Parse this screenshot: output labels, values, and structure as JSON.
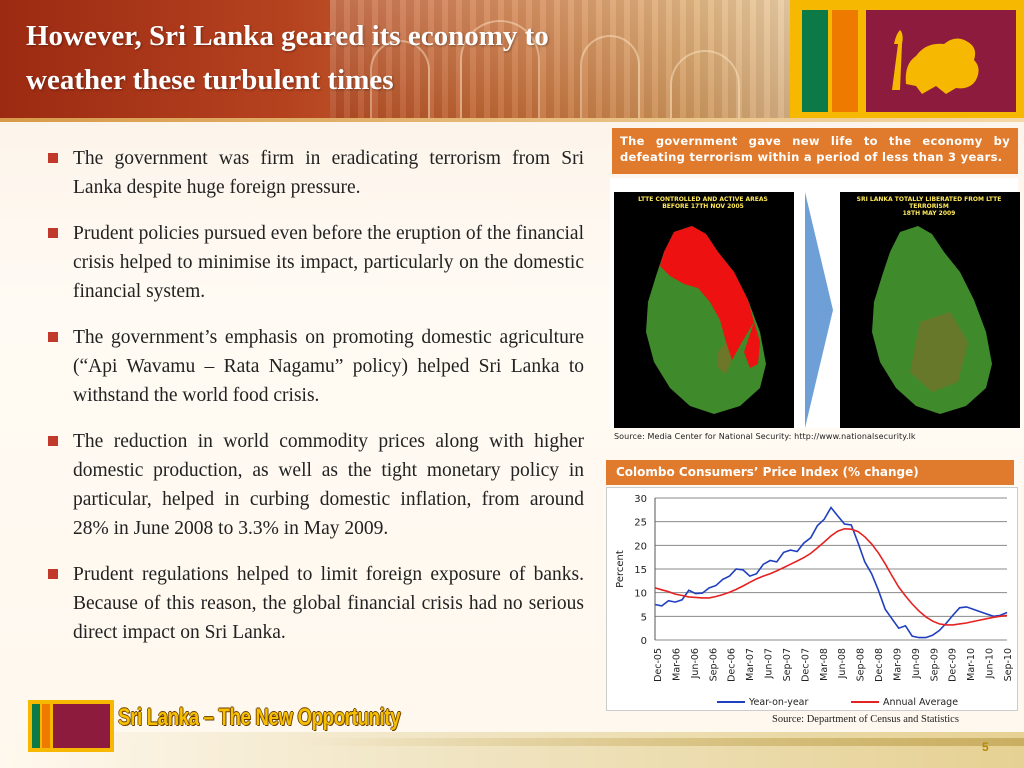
{
  "slide": {
    "title_line1": "However, Sri Lanka geared its economy to",
    "title_line2": "weather these turbulent times",
    "page_number": "5",
    "tagline": "Sri Lanka – The New Opportunity"
  },
  "bullets": [
    "The government was firm in eradicating terrorism from Sri Lanka despite huge foreign pressure.",
    "Prudent policies pursued even before the eruption of the financial crisis helped to minimise its impact, particularly on the domestic financial system.",
    "The government’s emphasis on promoting domestic agriculture (“Api Wavamu – Rata Nagamu” policy) helped Sri Lanka to withstand the world food crisis.",
    "The reduction in world commodity prices along with higher domestic production, as well as the tight monetary policy in particular, helped in curbing domestic inflation, from around 28% in June 2008 to 3.3% in May 2009.",
    "Prudent regulations helped to limit foreign exposure of banks. Because of this reason, the global financial crisis had no serious direct impact on Sri Lanka."
  ],
  "maps": {
    "callout": "The government gave new life to the economy by defeating terrorism within a period of less than 3 years.",
    "left_caption_line1": "LTTE CONTROLLED AND ACTIVE AREAS",
    "left_caption_line2": "BEFORE 17TH NOV 2005",
    "right_caption_line1": "SRI LANKA TOTALLY LIBERATED FROM LTTE TERRORISM",
    "right_caption_line2": "18TH MAY 2009",
    "source": "Source: Media Center for National Security: http://www.nationalsecurity.lk",
    "colors": {
      "ltte_area": "#ee1111",
      "land": "#3f8a2a",
      "arrow": "#6e9fd6"
    }
  },
  "chart_data": {
    "type": "line",
    "title": "Colombo Consumers’ Price Index (% change)",
    "ylabel": "Percent",
    "xlabel": "",
    "ylim": [
      0,
      30
    ],
    "yticks": [
      0,
      5,
      10,
      15,
      20,
      25,
      30
    ],
    "x_tick_labels": [
      "Dec-05",
      "Mar-06",
      "Jun-06",
      "Sep-06",
      "Dec-06",
      "Mar-07",
      "Jun-07",
      "Sep-07",
      "Dec-07",
      "Mar-08",
      "Jun-08",
      "Sep-08",
      "Dec-08",
      "Mar-09",
      "Jun-09",
      "Sep-09",
      "Dec-09",
      "Mar-10",
      "Jun-10",
      "Sep-10"
    ],
    "grid": true,
    "legend": "bottom",
    "source": "Source: Department of Census and Statistics",
    "series": [
      {
        "name": "Year-on-year",
        "color": "#1f3fbf",
        "values": [
          7.5,
          7.2,
          8.3,
          8.0,
          8.5,
          10.5,
          9.8,
          9.9,
          11.0,
          11.5,
          12.8,
          13.5,
          15.0,
          14.8,
          13.5,
          14.0,
          16.0,
          16.8,
          16.5,
          18.5,
          19.0,
          18.7,
          20.5,
          21.6,
          24.2,
          25.5,
          28.0,
          26.2,
          24.5,
          24.3,
          20.5,
          16.5,
          14.0,
          10.5,
          6.5,
          4.5,
          2.5,
          3.0,
          0.8,
          0.5,
          0.5,
          1.0,
          2.0,
          3.5,
          5.2,
          6.8,
          7.0,
          6.5,
          6.0,
          5.5,
          5.0,
          5.2,
          5.8
        ]
      },
      {
        "name": "Annual Average",
        "color": "#e52222",
        "values": [
          11.0,
          10.6,
          10.2,
          9.7,
          9.4,
          9.1,
          9.0,
          8.9,
          8.9,
          9.2,
          9.6,
          10.1,
          10.7,
          11.4,
          12.2,
          12.9,
          13.5,
          14.0,
          14.6,
          15.3,
          16.0,
          16.7,
          17.4,
          18.3,
          19.5,
          20.7,
          22.0,
          23.0,
          23.5,
          23.4,
          22.9,
          21.8,
          20.3,
          18.4,
          16.1,
          13.6,
          11.2,
          9.3,
          7.6,
          6.1,
          4.9,
          4.0,
          3.4,
          3.2,
          3.2,
          3.4,
          3.6,
          3.9,
          4.2,
          4.5,
          4.8,
          5.0,
          5.2
        ]
      }
    ]
  }
}
